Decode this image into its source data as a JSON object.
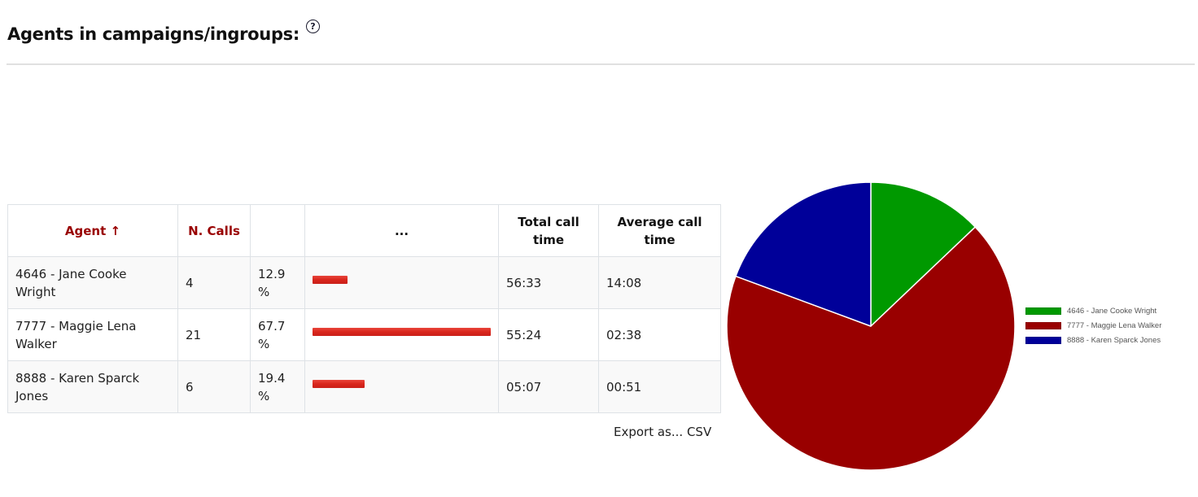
{
  "header": {
    "title": "Agents in campaigns/ingroups:",
    "help_icon": "?"
  },
  "table": {
    "columns": [
      {
        "label": "Agent ↑",
        "sortable": true
      },
      {
        "label": "N. Calls",
        "sortable": true
      },
      {
        "label": "",
        "sortable": false
      },
      {
        "label": "...",
        "sortable": false
      },
      {
        "label": "Total call time",
        "sortable": false
      },
      {
        "label": "Average call time",
        "sortable": false
      }
    ],
    "rows": [
      {
        "agent": "4646 - Jane Cooke Wright",
        "calls": "4",
        "pct": "12.9 %",
        "bar_pct": 19.6,
        "total": "56:33",
        "avg": "14:08"
      },
      {
        "agent": "7777 - Maggie Lena Walker",
        "calls": "21",
        "pct": "67.7 %",
        "bar_pct": 100,
        "total": "55:24",
        "avg": "02:38"
      },
      {
        "agent": "8888 - Karen Sparck Jones",
        "calls": "6",
        "pct": "19.4 %",
        "bar_pct": 29.2,
        "total": "05:07",
        "avg": "00:51"
      }
    ],
    "export_label": "Export as... CSV"
  },
  "colors": {
    "header_link": "#990000",
    "bar": "#d9261c",
    "pie_green": "#009900",
    "pie_red": "#990000",
    "pie_blue": "#000099"
  },
  "chart_data": {
    "type": "pie",
    "title": "",
    "categories": [
      "4646 - Jane Cooke Wright",
      "7777 - Maggie Lena Walker",
      "8888 - Karen Sparck Jones"
    ],
    "values": [
      4,
      21,
      6
    ],
    "percentages": [
      12.9,
      67.7,
      19.4
    ],
    "colors": [
      "#009900",
      "#990000",
      "#000099"
    ],
    "legend_position": "right",
    "start_angle": "top, clockwise"
  }
}
